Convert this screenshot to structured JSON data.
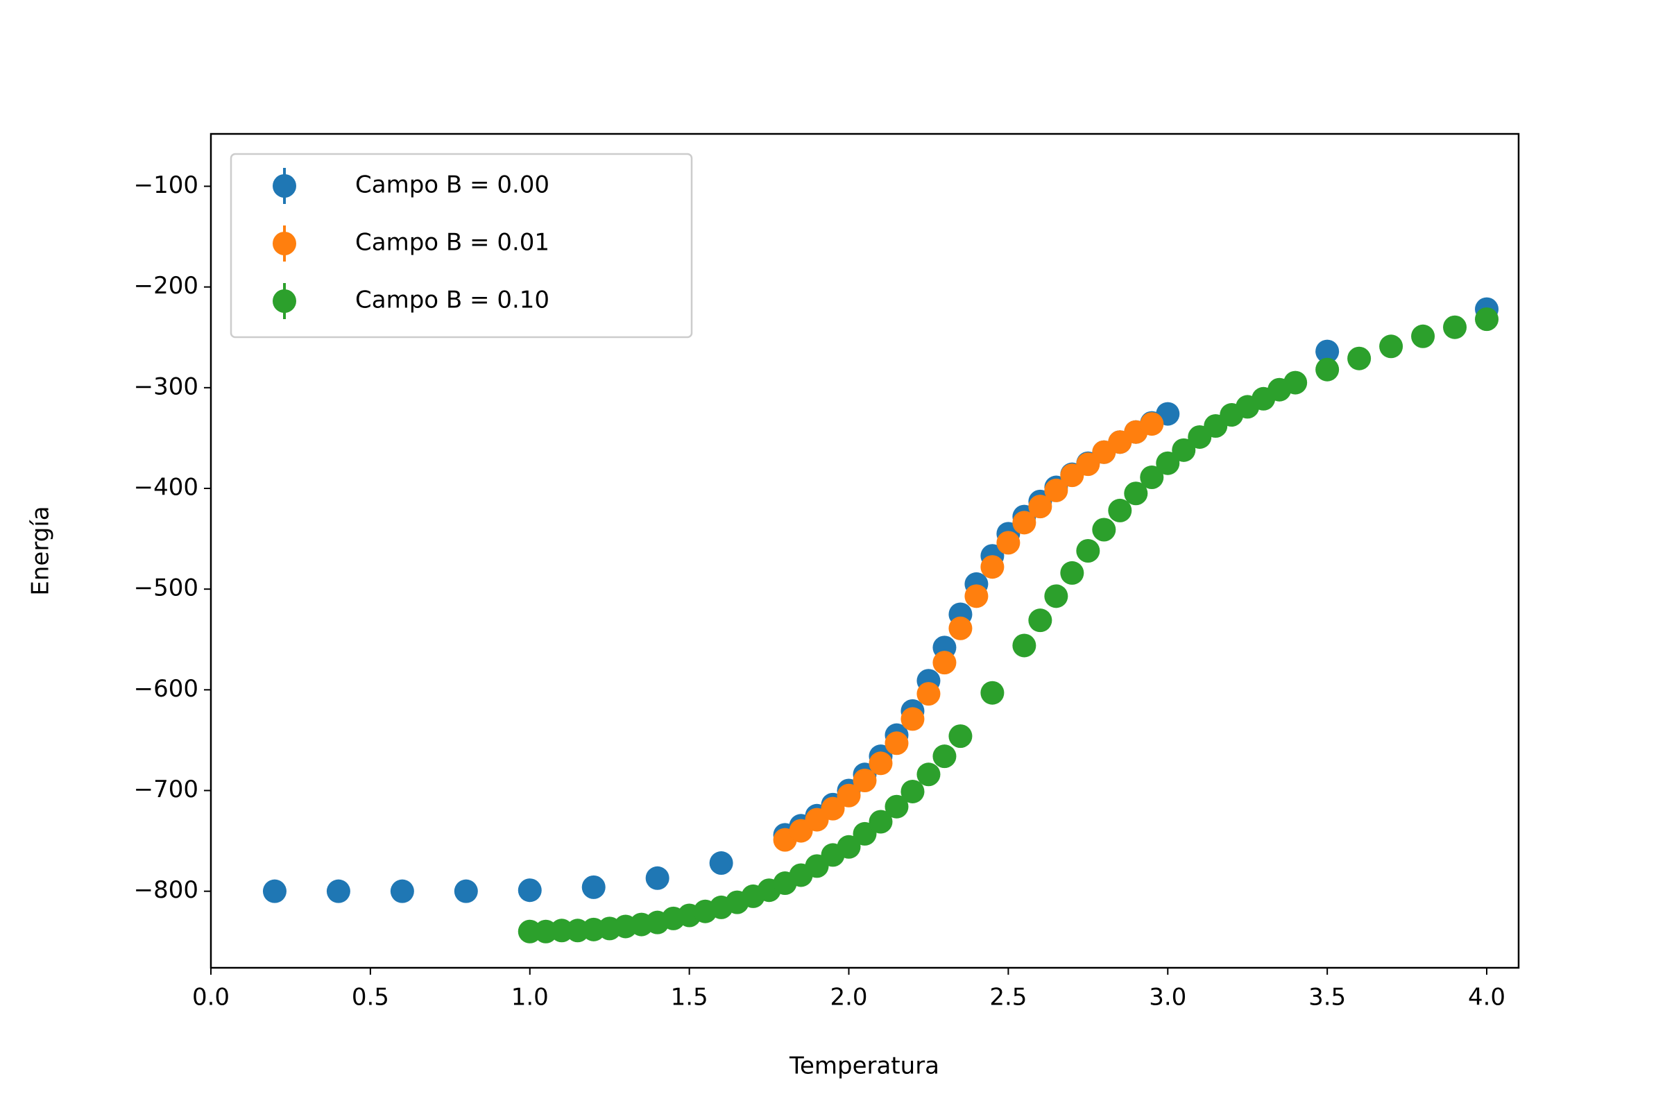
{
  "chart_data": {
    "type": "scatter",
    "x_label": "Temperatura",
    "y_label": "Energía",
    "xlim": [
      0,
      4.1
    ],
    "ylim": [
      -876,
      -48
    ],
    "xticks": [
      {
        "value": 0,
        "label": "0.0"
      },
      {
        "value": 0.5,
        "label": "0.5"
      },
      {
        "value": 1,
        "label": "1.0"
      },
      {
        "value": 1.5,
        "label": "1.5"
      },
      {
        "value": 2,
        "label": "2.0"
      },
      {
        "value": 2.5,
        "label": "2.5"
      },
      {
        "value": 3,
        "label": "3.0"
      },
      {
        "value": 3.5,
        "label": "3.5"
      },
      {
        "value": 4,
        "label": "4.0"
      }
    ],
    "yticks": [
      {
        "value": -100,
        "label": "−100"
      },
      {
        "value": -200,
        "label": "−200"
      },
      {
        "value": -300,
        "label": "−300"
      },
      {
        "value": -400,
        "label": "−400"
      },
      {
        "value": -500,
        "label": "−500"
      },
      {
        "value": -600,
        "label": "−600"
      },
      {
        "value": -700,
        "label": "−700"
      },
      {
        "value": -800,
        "label": "−800"
      }
    ],
    "legend": "upper left",
    "series": [
      {
        "name": "Campo B = 0.00",
        "color": "#1f77b4",
        "x": [
          0.2,
          0.4,
          0.6,
          0.8,
          1.0,
          1.2,
          1.4,
          1.6,
          1.8,
          1.85,
          1.9,
          1.95,
          2.0,
          2.05,
          2.1,
          2.15,
          2.2,
          2.25,
          2.3,
          2.35,
          2.4,
          2.45,
          2.5,
          2.55,
          2.6,
          2.65,
          2.7,
          2.75,
          2.8,
          2.85,
          2.9,
          2.95,
          3.0,
          3.5,
          4.0
        ],
        "values": [
          -800,
          -800,
          -800,
          -800,
          -799,
          -796,
          -787,
          -772,
          -744,
          -735,
          -725,
          -714,
          -700,
          -684,
          -666,
          -645,
          -621,
          -591,
          -558,
          -525,
          -495,
          -467,
          -445,
          -428,
          -413,
          -399,
          -386,
          -375,
          -364,
          -354,
          -344,
          -335,
          -326,
          -264,
          -222
        ]
      },
      {
        "name": "Campo B = 0.01",
        "color": "#ff7f0e",
        "x": [
          1.8,
          1.85,
          1.9,
          1.95,
          2.0,
          2.05,
          2.1,
          2.15,
          2.2,
          2.25,
          2.3,
          2.35,
          2.4,
          2.45,
          2.5,
          2.55,
          2.6,
          2.65,
          2.7,
          2.75,
          2.8,
          2.85,
          2.9,
          2.95
        ],
        "values": [
          -749,
          -740,
          -729,
          -718,
          -705,
          -690,
          -673,
          -653,
          -629,
          -604,
          -573,
          -539,
          -507,
          -478,
          -454,
          -434,
          -418,
          -402,
          -387,
          -376,
          -364,
          -354,
          -344,
          -336
        ]
      },
      {
        "name": "Campo B = 0.10",
        "color": "#2ca02c",
        "x": [
          1.0,
          1.05,
          1.1,
          1.15,
          1.2,
          1.25,
          1.3,
          1.35,
          1.4,
          1.45,
          1.5,
          1.55,
          1.6,
          1.65,
          1.7,
          1.75,
          1.8,
          1.85,
          1.9,
          1.95,
          2.0,
          2.05,
          2.1,
          2.15,
          2.2,
          2.25,
          2.3,
          2.35,
          2.45,
          2.55,
          2.6,
          2.65,
          2.7,
          2.75,
          2.8,
          2.85,
          2.9,
          2.95,
          3.0,
          3.05,
          3.1,
          3.15,
          3.2,
          3.25,
          3.3,
          3.35,
          3.4,
          3.5,
          3.6,
          3.7,
          3.8,
          3.9,
          4.0
        ],
        "values": [
          -840,
          -840,
          -839,
          -839,
          -838,
          -837,
          -835,
          -833,
          -831,
          -827,
          -824,
          -820,
          -816,
          -811,
          -805,
          -799,
          -792,
          -784,
          -775,
          -764,
          -756,
          -743,
          -731,
          -716,
          -701,
          -684,
          -666,
          -646,
          -603,
          -556,
          -531,
          -507,
          -484,
          -462,
          -441,
          -422,
          -405,
          -389,
          -375,
          -362,
          -349,
          -338,
          -327,
          -319,
          -311,
          -302,
          -295,
          -282,
          -271,
          -259,
          -249,
          -240,
          -232
        ]
      }
    ]
  }
}
